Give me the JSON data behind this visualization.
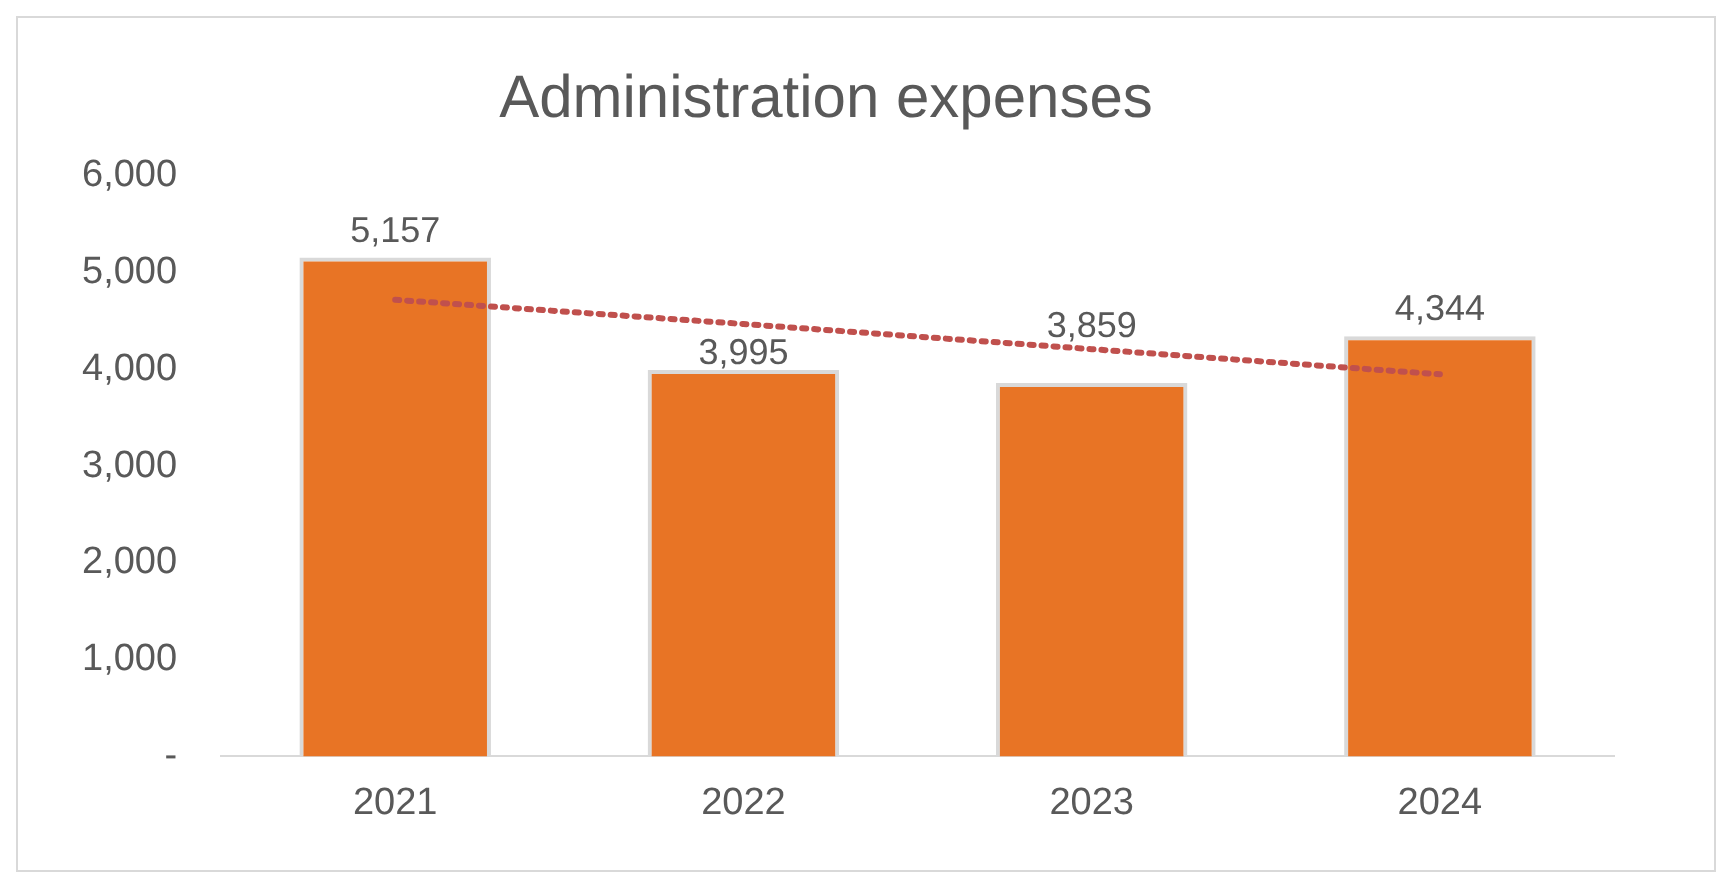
{
  "chart_data": {
    "type": "bar",
    "title": "Administration expenses",
    "categories": [
      "2021",
      "2022",
      "2023",
      "2024"
    ],
    "series": [
      {
        "color": "#e87425",
        "values": [
          5157,
          3995,
          3859,
          4344
        ],
        "value_labels": [
          "5,157",
          "3,995",
          "3,859",
          "4,344"
        ]
      },
      {
        "type": "line",
        "color": "#c0504d",
        "line_style": "dotted",
        "marker": "none",
        "values": [
          4720,
          4470,
          4210,
          3950
        ]
      }
    ],
    "ylim": [
      0,
      6000
    ],
    "yticks": [
      {
        "value": 0,
        "label": "-"
      },
      {
        "value": 1000,
        "label": "1,000"
      },
      {
        "value": 2000,
        "label": "2,000"
      },
      {
        "value": 3000,
        "label": "3,000"
      },
      {
        "value": 4000,
        "label": "4,000"
      },
      {
        "value": 5000,
        "label": "5,000"
      },
      {
        "value": 6000,
        "label": "6,000"
      }
    ],
    "grid": false,
    "legend": false
  }
}
